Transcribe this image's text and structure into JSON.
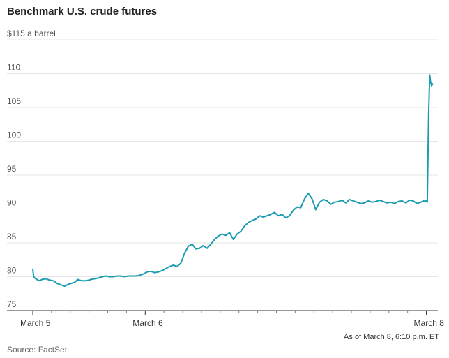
{
  "chart_data": {
    "type": "line",
    "title": "Benchmark U.S. crude futures",
    "ylabel": "",
    "xlabel": "",
    "ylim": [
      75,
      115
    ],
    "yticks": [
      75,
      80,
      85,
      90,
      95,
      100,
      105,
      110,
      115
    ],
    "ytick_labels": [
      "75",
      "80",
      "85",
      "90",
      "95",
      "100",
      "105",
      "110",
      "$115 a barrel"
    ],
    "xlim": [
      0,
      21.5
    ],
    "xticks": [
      {
        "x": 0,
        "label": "March 5"
      },
      {
        "x": 1,
        "label": ""
      },
      {
        "x": 2,
        "label": ""
      },
      {
        "x": 3,
        "label": ""
      },
      {
        "x": 4,
        "label": ""
      },
      {
        "x": 5,
        "label": ""
      },
      {
        "x": 6,
        "label": "March 6"
      },
      {
        "x": 7,
        "label": ""
      },
      {
        "x": 8,
        "label": ""
      },
      {
        "x": 9,
        "label": ""
      },
      {
        "x": 10,
        "label": ""
      },
      {
        "x": 11,
        "label": ""
      },
      {
        "x": 12,
        "label": ""
      },
      {
        "x": 13,
        "label": ""
      },
      {
        "x": 14,
        "label": ""
      },
      {
        "x": 15,
        "label": ""
      },
      {
        "x": 16,
        "label": ""
      },
      {
        "x": 17,
        "label": ""
      },
      {
        "x": 18,
        "label": ""
      },
      {
        "x": 19,
        "label": ""
      },
      {
        "x": 20,
        "label": ""
      },
      {
        "x": 21,
        "label": "March 8"
      }
    ],
    "grid": true,
    "color": "#1a9bb0",
    "series": [
      {
        "x": [
          0,
          0.05,
          0.15,
          0.35,
          0.5,
          0.7,
          0.9,
          1.1,
          1.3,
          1.5,
          1.7,
          1.9,
          2.05,
          2.25,
          2.4,
          2.6,
          2.8,
          3.0,
          3.1,
          3.3,
          3.5,
          3.7,
          3.9,
          4.1,
          4.3,
          4.5,
          4.7,
          4.9,
          5.1,
          5.3,
          5.5,
          5.7,
          5.9,
          6.1,
          6.3,
          6.5,
          6.7,
          6.9,
          7.1,
          7.3,
          7.5,
          7.7,
          7.9,
          8.1,
          8.3,
          8.5,
          8.7,
          8.9,
          9.1,
          9.3,
          9.5,
          9.7,
          9.9,
          10.1,
          10.3,
          10.5,
          10.7,
          10.9,
          11.1,
          11.3,
          11.5,
          11.7,
          11.9,
          12.1,
          12.3,
          12.5,
          12.7,
          12.9,
          13.1,
          13.3,
          13.5,
          13.7,
          13.9,
          14.1,
          14.3,
          14.5,
          14.7,
          14.9,
          15.1,
          15.3,
          15.5,
          15.7,
          15.9,
          16.1,
          16.3,
          16.5,
          16.7,
          16.9,
          17.1,
          17.3,
          17.5,
          17.7,
          17.9,
          18.1,
          18.3,
          18.5,
          18.7,
          18.9,
          19.1,
          19.3,
          19.5,
          19.7,
          19.9,
          20.1,
          20.3,
          20.5,
          20.7,
          20.85,
          20.95,
          21.0,
          21.05,
          21.12,
          21.18,
          21.22,
          21.28,
          21.33
        ],
        "values": [
          81.1,
          80.0,
          79.7,
          79.4,
          79.6,
          79.7,
          79.5,
          79.4,
          79.0,
          78.8,
          78.6,
          78.9,
          79.0,
          79.2,
          79.6,
          79.4,
          79.4,
          79.5,
          79.6,
          79.7,
          79.8,
          80.0,
          80.1,
          80.0,
          80.0,
          80.1,
          80.1,
          80.0,
          80.1,
          80.1,
          80.1,
          80.2,
          80.4,
          80.7,
          80.8,
          80.6,
          80.7,
          80.9,
          81.2,
          81.5,
          81.7,
          81.5,
          82.0,
          83.5,
          84.5,
          84.8,
          84.1,
          84.2,
          84.6,
          84.2,
          84.8,
          85.5,
          86.0,
          86.3,
          86.1,
          86.5,
          85.5,
          86.3,
          86.7,
          87.5,
          88.0,
          88.3,
          88.5,
          89.0,
          88.8,
          89.0,
          89.2,
          89.5,
          89.0,
          89.2,
          88.7,
          89.0,
          89.8,
          90.3,
          90.2,
          91.5,
          92.3,
          91.5,
          89.9,
          91.0,
          91.4,
          91.2,
          90.7,
          91.0,
          91.1,
          91.3,
          90.9,
          91.4,
          91.2,
          91.0,
          90.8,
          90.9,
          91.2,
          91.0,
          91.1,
          91.3,
          91.1,
          90.9,
          91.0,
          90.8,
          91.1,
          91.2,
          90.9,
          91.3,
          91.2,
          90.8,
          91.0,
          91.2,
          91.1,
          91.3,
          91.0,
          104.0,
          109.8,
          108.8,
          108.2,
          108.5
        ]
      }
    ],
    "source": "Source: FactSet",
    "footnote": "As of March 8, 6:10 p.m. ET"
  }
}
